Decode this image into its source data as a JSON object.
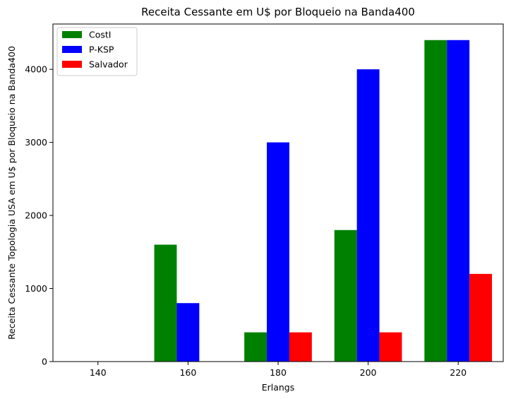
{
  "chart_data": {
    "type": "bar",
    "title": "Receita Cessante em U$ por Bloqueio na Banda400",
    "xlabel": "Erlangs",
    "ylabel": "Receita Cessante Topologia USA em U$ por Bloqueio na Banda400",
    "categories": [
      "140",
      "160",
      "180",
      "200",
      "220"
    ],
    "series": [
      {
        "name": "CostI",
        "color": "#008000",
        "values": [
          0,
          1600,
          400,
          1800,
          4400
        ]
      },
      {
        "name": "P-KSP",
        "color": "#0000ff",
        "values": [
          0,
          800,
          3000,
          4000,
          4400
        ]
      },
      {
        "name": "Salvador",
        "color": "#ff0000",
        "values": [
          0,
          0,
          400,
          400,
          1200
        ]
      }
    ],
    "yticks": [
      0,
      1000,
      2000,
      3000,
      4000
    ],
    "ylim": [
      0,
      4620
    ],
    "grid": false,
    "legend_position": "top-left"
  }
}
